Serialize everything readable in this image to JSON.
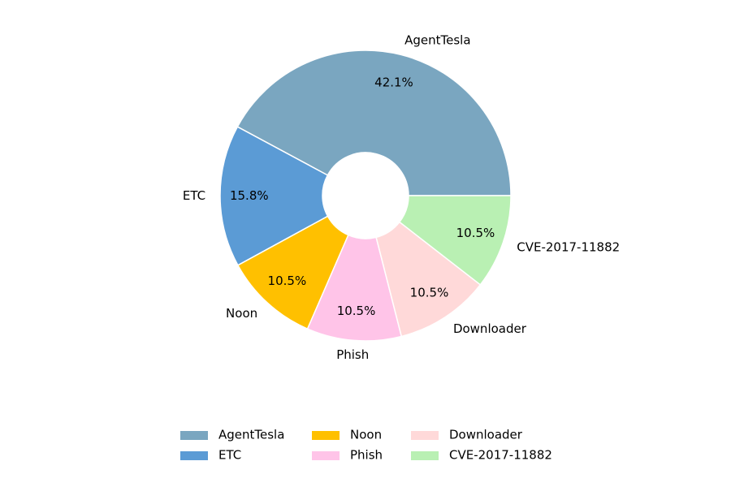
{
  "chart_data": {
    "type": "pie",
    "donut": true,
    "categories": [
      "AgentTesla",
      "ETC",
      "Noon",
      "Phish",
      "Downloader",
      "CVE-2017-11882"
    ],
    "values": [
      42.1,
      15.8,
      10.5,
      10.5,
      10.5,
      10.5
    ],
    "percent_labels": [
      "42.1%",
      "15.8%",
      "10.5%",
      "10.5%",
      "10.5%",
      "10.5%"
    ],
    "colors": [
      "#7aa6c0",
      "#5b9bd5",
      "#ffc000",
      "#ffc4e8",
      "#ffd9d9",
      "#b9f0b3"
    ],
    "legend_placement": "bottom-center",
    "legend_columns": 3
  }
}
